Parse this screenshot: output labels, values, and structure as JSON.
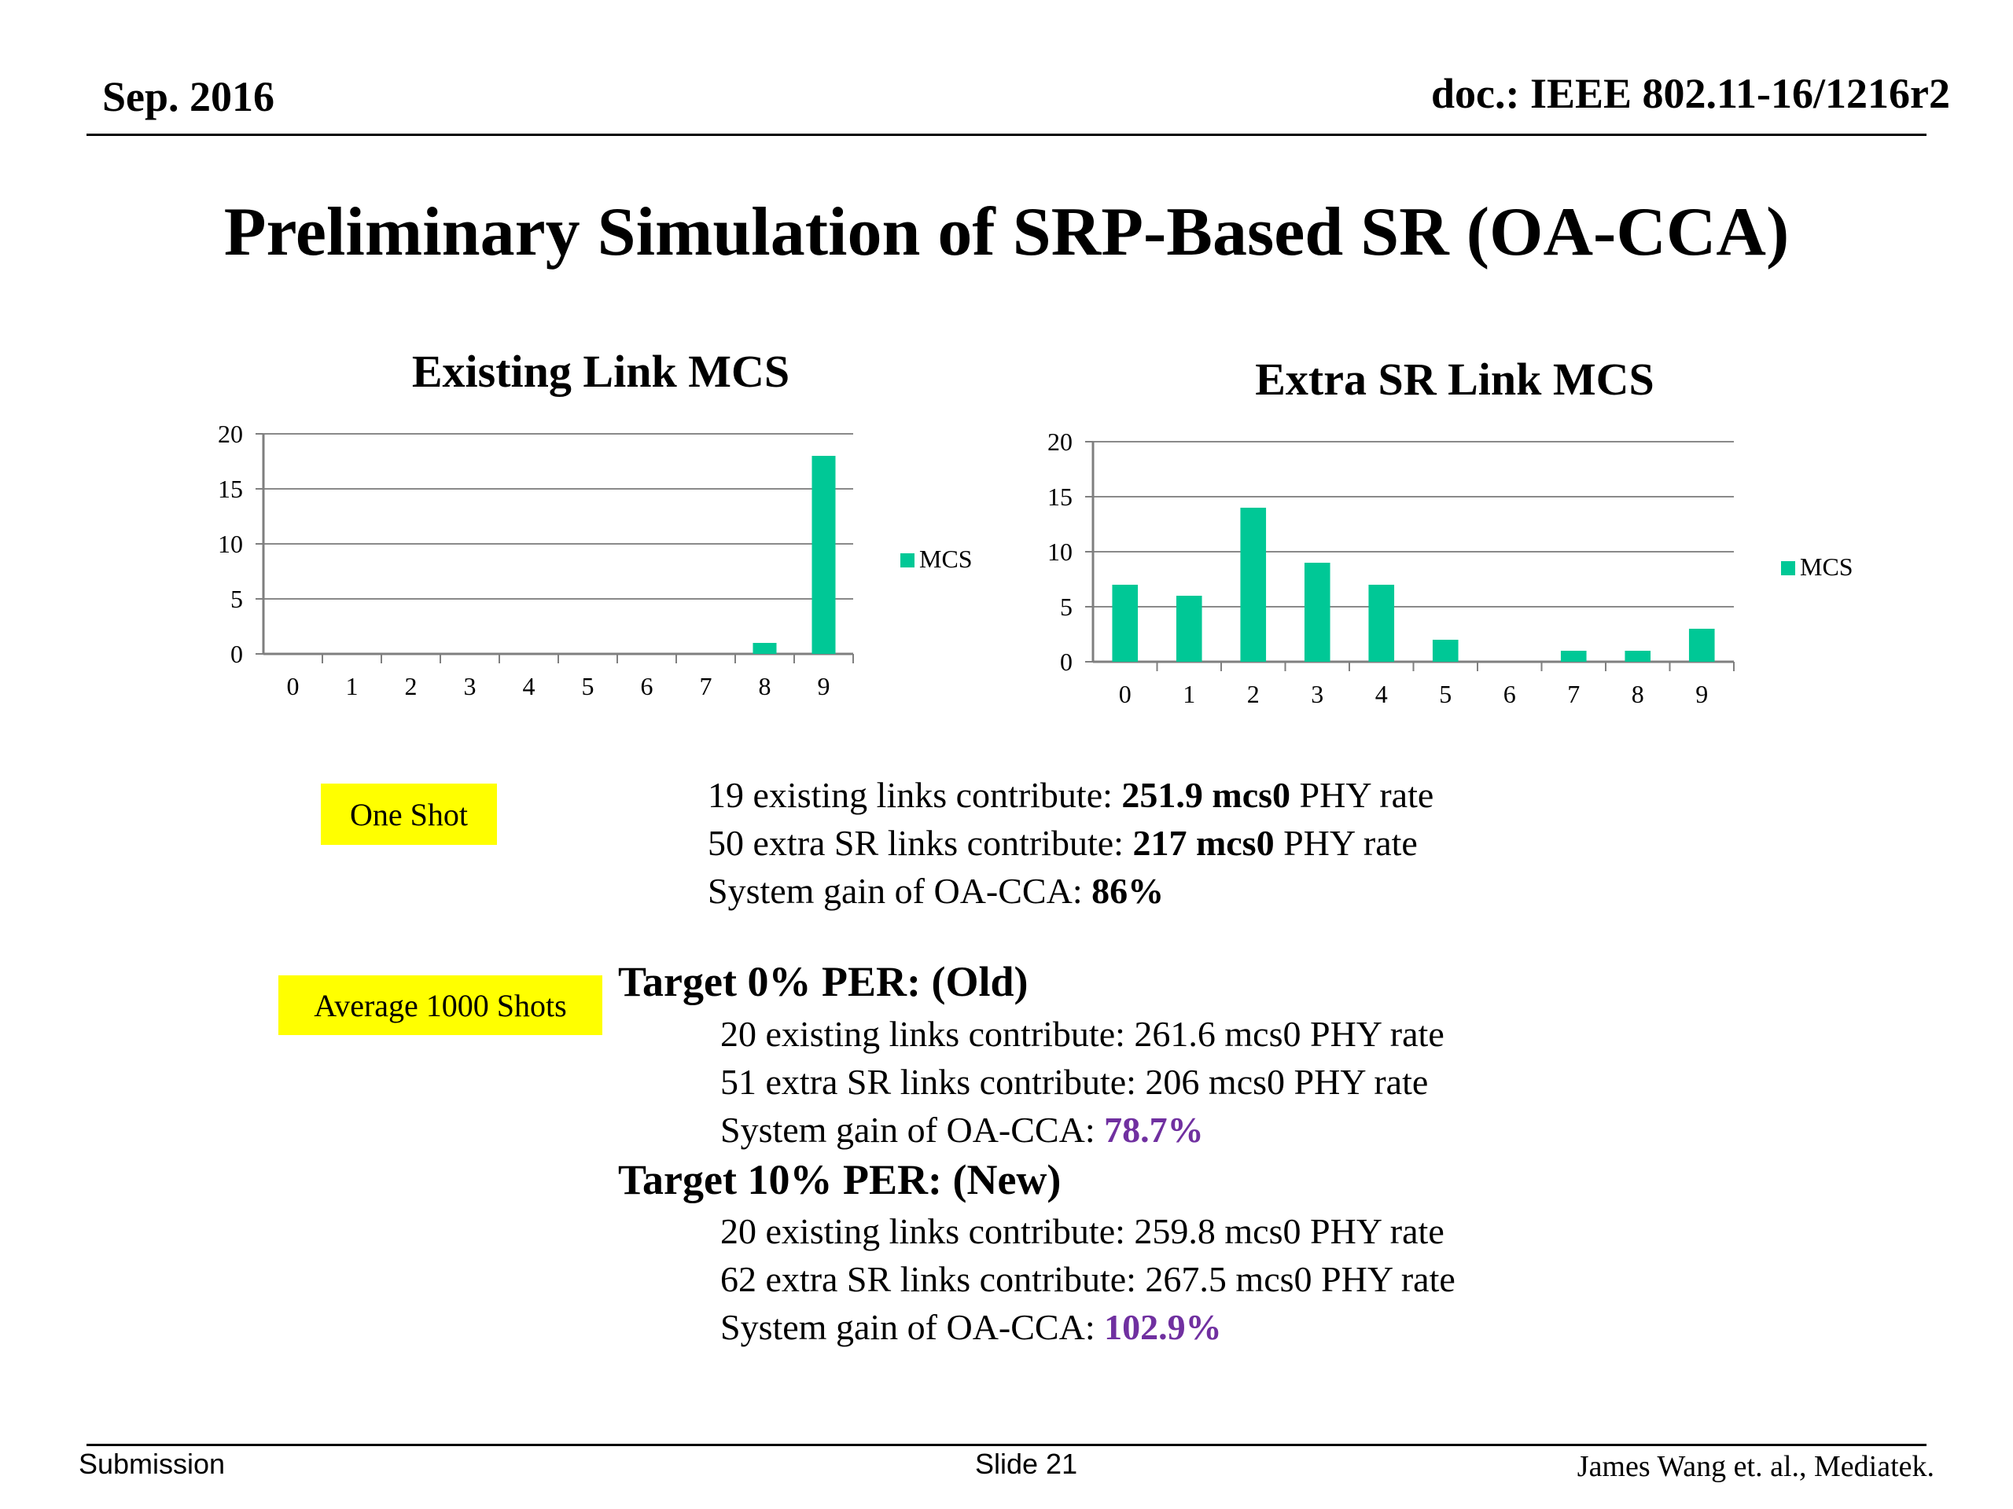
{
  "header": {
    "date": "Sep. 2016",
    "doc": "doc.: IEEE 802.11-16/1216r2"
  },
  "title": "Preliminary Simulation of SRP-Based SR (OA-CCA)",
  "colors": {
    "bar": "#00c896",
    "highlight": "#ffff00",
    "accent": "#7030a0"
  },
  "chart_data": [
    {
      "type": "bar",
      "title": "Existing Link MCS",
      "categories": [
        "0",
        "1",
        "2",
        "3",
        "4",
        "5",
        "6",
        "7",
        "8",
        "9"
      ],
      "series": [
        {
          "name": "MCS",
          "values": [
            0,
            0,
            0,
            0,
            0,
            0,
            0,
            0,
            1,
            18
          ]
        }
      ],
      "ylim": [
        0,
        20
      ],
      "yticks": [
        0,
        5,
        10,
        15,
        20
      ],
      "grid": true,
      "legend": "right"
    },
    {
      "type": "bar",
      "title": "Extra SR Link MCS",
      "categories": [
        "0",
        "1",
        "2",
        "3",
        "4",
        "5",
        "6",
        "7",
        "8",
        "9"
      ],
      "series": [
        {
          "name": "MCS",
          "values": [
            7,
            6,
            14,
            9,
            7,
            2,
            0,
            1,
            1,
            3
          ]
        }
      ],
      "ylim": [
        0,
        20
      ],
      "yticks": [
        0,
        5,
        10,
        15,
        20
      ],
      "grid": true,
      "legend": "right"
    }
  ],
  "one_shot": {
    "label": "One Shot",
    "line1": {
      "prefix": "19 existing links contribute: ",
      "value": "251.9 mcs0",
      "suffix": " PHY rate"
    },
    "line2": {
      "prefix": "50 extra SR links contribute: ",
      "value": "217 mcs0",
      "suffix": " PHY rate"
    },
    "line3": {
      "prefix": "System gain of OA-CCA: ",
      "value": "86%"
    }
  },
  "average": {
    "label": "Average 1000 Shots",
    "old": {
      "heading": "Target 0% PER: (Old)",
      "line1": "20 existing links contribute: 261.6 mcs0 PHY rate",
      "line2": "51 extra SR links contribute: 206 mcs0 PHY rate",
      "gain_prefix": "System gain of OA-CCA: ",
      "gain_value": "78.7%"
    },
    "new": {
      "heading": "Target 10% PER: (New)",
      "line1": "20 existing links contribute: 259.8 mcs0 PHY rate",
      "line2": "62 extra SR links contribute: 267.5 mcs0 PHY rate",
      "gain_prefix": "System gain of OA-CCA: ",
      "gain_value": "102.9%"
    }
  },
  "footer": {
    "left": "Submission",
    "center": "Slide 21",
    "right": "James Wang et. al., Mediatek."
  }
}
